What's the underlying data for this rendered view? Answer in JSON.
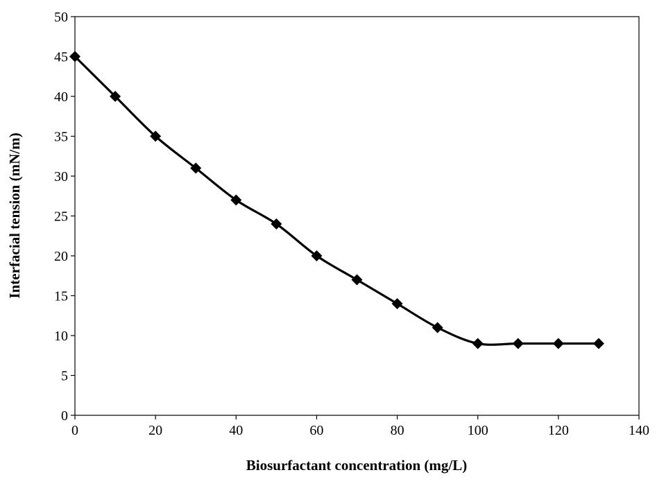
{
  "chart_data": {
    "type": "line",
    "title": "",
    "xlabel": "Biosurfactant concentration (mg/L)",
    "ylabel": "Interfacial tension  (mN/m)",
    "xlim": [
      0,
      140
    ],
    "ylim": [
      0,
      50
    ],
    "xticks": [
      0,
      20,
      40,
      60,
      80,
      100,
      120,
      140
    ],
    "yticks": [
      0,
      5,
      10,
      15,
      20,
      25,
      30,
      35,
      40,
      45,
      50
    ],
    "grid": false,
    "legend": "none",
    "smoothed": true,
    "marker": "diamond",
    "line_color": "#000000",
    "series": [
      {
        "x": [
          0,
          10,
          20,
          30,
          40,
          50,
          60,
          70,
          80,
          90,
          100,
          110,
          120,
          130
        ],
        "y": [
          45,
          40,
          35,
          31,
          27,
          24,
          20,
          17,
          14,
          11,
          9,
          9,
          9,
          9
        ]
      }
    ]
  }
}
